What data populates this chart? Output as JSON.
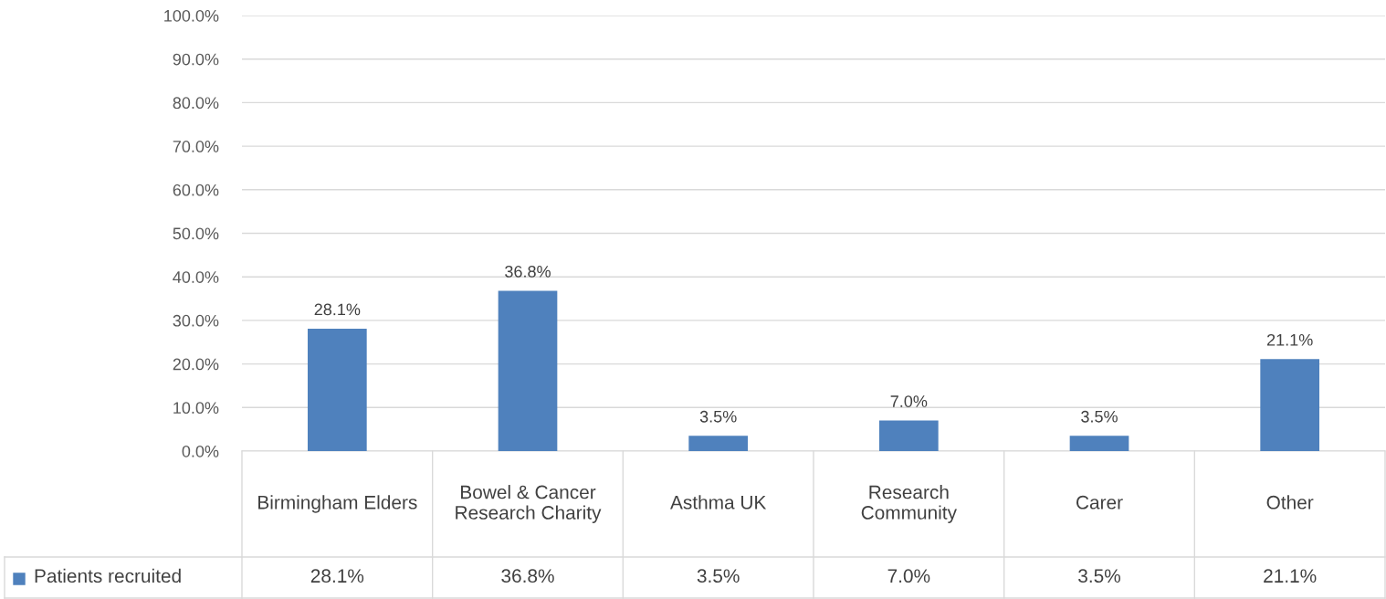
{
  "chart_data": {
    "type": "bar",
    "categories": [
      "Birmingham Elders",
      "Bowel & Cancer Research Charity",
      "Asthma UK",
      "Research Community",
      "Carer",
      "Other"
    ],
    "series": [
      {
        "name": "Patients recruited",
        "color": "#4f81bd",
        "values": [
          28.1,
          36.8,
          3.5,
          7.0,
          3.5,
          21.1
        ],
        "value_labels": [
          "28.1%",
          "36.8%",
          "3.5%",
          "7.0%",
          "3.5%",
          "21.1%"
        ]
      }
    ],
    "ylim": [
      0,
      100
    ],
    "yticks": [
      {
        "value": 0,
        "label": "0.0%"
      },
      {
        "value": 10,
        "label": "10.0%"
      },
      {
        "value": 20,
        "label": "20.0%"
      },
      {
        "value": 30,
        "label": "30.0%"
      },
      {
        "value": 40,
        "label": "40.0%"
      },
      {
        "value": 50,
        "label": "50.0%"
      },
      {
        "value": 60,
        "label": "60.0%"
      },
      {
        "value": 70,
        "label": "70.0%"
      },
      {
        "value": 80,
        "label": "80.0%"
      },
      {
        "value": 90,
        "label": "90.0%"
      },
      {
        "value": 100,
        "label": "100.0%"
      }
    ],
    "grid": "y",
    "legend": "bottom"
  }
}
